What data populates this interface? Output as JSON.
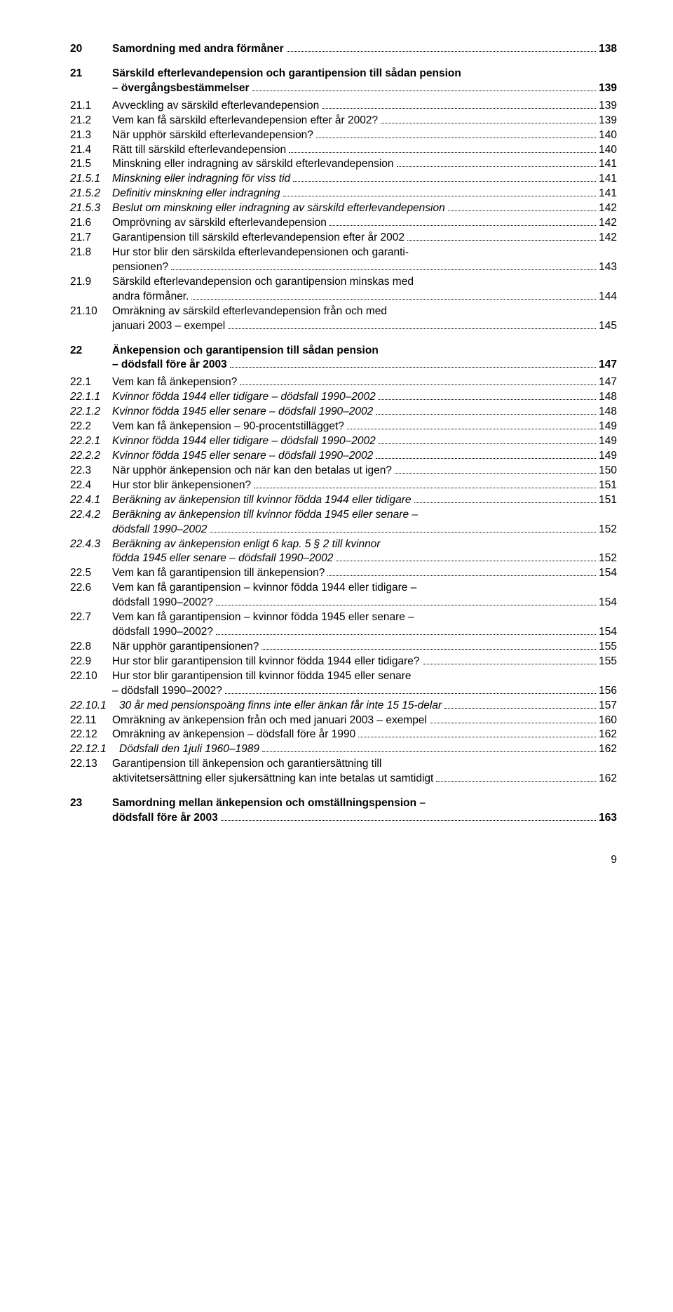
{
  "page_number": "9",
  "font": {
    "body_size_pt": 11,
    "family": "Arial"
  },
  "colors": {
    "text": "#000000",
    "background": "#ffffff"
  },
  "entries": [
    {
      "num": "20",
      "label": "Samordning med andra förmåner",
      "page": "138",
      "bold": true,
      "gap_after": "med"
    },
    {
      "num": "21",
      "label": "Särskild efterlevandepension och garantipension till sådan pension",
      "page": "",
      "bold": true,
      "no_dots": true
    },
    {
      "num": "",
      "label": "– övergångsbestämmelser",
      "page": "139",
      "bold": true,
      "gap_after": "small"
    },
    {
      "num": "21.1",
      "label": "Avveckling av särskild efterlevandepension",
      "page": "139"
    },
    {
      "num": "21.2",
      "label": "Vem kan få särskild efterlevandepension efter år 2002?",
      "page": "139"
    },
    {
      "num": "21.3",
      "label": "När upphör särskild efterlevandepension?",
      "page": "140"
    },
    {
      "num": "21.4",
      "label": "Rätt till särskild efterlevandepension",
      "page": "140"
    },
    {
      "num": "21.5",
      "label": "Minskning eller indragning av särskild efterlevandepension",
      "page": "141"
    },
    {
      "num": "21.5.1",
      "label": "Minskning eller indragning för viss tid",
      "page": "141",
      "italic": true
    },
    {
      "num": "21.5.2",
      "label": "Definitiv minskning eller indragning",
      "page": "141",
      "italic": true
    },
    {
      "num": "21.5.3",
      "label": "Beslut om minskning eller indragning av särskild efterlevandepension",
      "page": "142",
      "italic": true
    },
    {
      "num": "21.6",
      "label": "Omprövning av särskild efterlevandepension",
      "page": "142"
    },
    {
      "num": "21.7",
      "label": "Garantipension till särskild efterlevandepension efter år 2002",
      "page": "142"
    },
    {
      "num": "21.8",
      "label": "Hur stor blir den särskilda efterlevandepensionen och garanti-",
      "page": "",
      "no_dots": true
    },
    {
      "num": "",
      "label": "pensionen?",
      "page": "143"
    },
    {
      "num": "21.9",
      "label": "Särskild efterlevandepension och garantipension minskas med",
      "page": "",
      "no_dots": true
    },
    {
      "num": "",
      "label": "andra förmåner.",
      "page": "144"
    },
    {
      "num": "21.10",
      "label": "Omräkning av särskild efterlevandepension från och med",
      "page": "",
      "no_dots": true
    },
    {
      "num": "",
      "label": "januari 2003 – exempel",
      "page": "145",
      "gap_after": "med"
    },
    {
      "num": "22",
      "label": "Änkepension och garantipension till sådan pension",
      "page": "",
      "bold": true,
      "no_dots": true
    },
    {
      "num": "",
      "label": "– dödsfall före år 2003",
      "page": "147",
      "bold": true,
      "gap_after": "small"
    },
    {
      "num": "22.1",
      "label": "Vem kan få änkepension?",
      "page": "147"
    },
    {
      "num": "22.1.1",
      "label": "Kvinnor födda 1944 eller tidigare – dödsfall 1990–2002",
      "page": "148",
      "italic": true
    },
    {
      "num": "22.1.2",
      "label": "Kvinnor födda 1945 eller senare – dödsfall 1990–2002",
      "page": "148",
      "italic": true
    },
    {
      "num": "22.2",
      "label": "Vem kan få änkepension – 90-procentstillägget?",
      "page": "149"
    },
    {
      "num": "22.2.1",
      "label": "Kvinnor födda 1944 eller tidigare – dödsfall 1990–2002",
      "page": "149",
      "italic": true
    },
    {
      "num": "22.2.2",
      "label": "Kvinnor födda 1945 eller senare – dödsfall 1990–2002",
      "page": "149",
      "italic": true
    },
    {
      "num": "22.3",
      "label": "När upphör änkepension och när kan den betalas ut igen?",
      "page": "150"
    },
    {
      "num": "22.4",
      "label": "Hur stor blir änkepensionen?",
      "page": "151"
    },
    {
      "num": "22.4.1",
      "label": "Beräkning av änkepension till kvinnor födda 1944 eller tidigare",
      "page": "151",
      "italic": true
    },
    {
      "num": "22.4.2",
      "label": "Beräkning av änkepension till kvinnor födda 1945 eller senare –",
      "page": "",
      "italic": true,
      "no_dots": true
    },
    {
      "num": "",
      "label": " dödsfall 1990–2002",
      "page": "152",
      "italic": true
    },
    {
      "num": "22.4.3",
      "label": "Beräkning av änkepension enligt 6 kap. 5 § 2 till kvinnor",
      "page": "",
      "italic": true,
      "no_dots": true
    },
    {
      "num": "",
      "label": "födda 1945 eller senare – dödsfall 1990–2002",
      "page": "152",
      "italic": true
    },
    {
      "num": "22.5",
      "label": "Vem kan få garantipension till änkepension?",
      "page": "154"
    },
    {
      "num": "22.6",
      "label": "Vem kan få garantipension – kvinnor födda 1944 eller tidigare –",
      "page": "",
      "no_dots": true
    },
    {
      "num": "",
      "label": " dödsfall 1990–2002?",
      "page": "154"
    },
    {
      "num": "22.7",
      "label": "Vem kan få garantipension – kvinnor födda 1945 eller senare –",
      "page": "",
      "no_dots": true
    },
    {
      "num": "",
      "label": " dödsfall 1990–2002?",
      "page": "154"
    },
    {
      "num": "22.8",
      "label": "När upphör garantipensionen?",
      "page": "155"
    },
    {
      "num": "22.9",
      "label": "Hur stor blir garantipension till kvinnor födda 1944 eller tidigare?",
      "page": "155"
    },
    {
      "num": "22.10",
      "label": "Hur stor blir garantipension till kvinnor födda 1945 eller senare",
      "page": "",
      "no_dots": true
    },
    {
      "num": "",
      "label": "– dödsfall 1990–2002?",
      "page": "156"
    },
    {
      "num": "22.10.1",
      "label": "30 år med pensionspoäng finns inte eller änkan får inte 15 15-delar",
      "page": "157",
      "italic": true,
      "num_wide": true
    },
    {
      "num": "22.11",
      "label": "Omräkning av änkepension från och med januari 2003 – exempel",
      "page": "160"
    },
    {
      "num": "22.12",
      "label": "Omräkning av änkepension – dödsfall före år 1990",
      "page": "162"
    },
    {
      "num": "22.12.1",
      "label": "Dödsfall den 1juli 1960–1989",
      "page": "162",
      "italic": true,
      "num_wide": true
    },
    {
      "num": "22.13",
      "label": "Garantipension till änkepension och garantiersättning till",
      "page": "",
      "no_dots": true
    },
    {
      "num": "",
      "label": "aktivitetsersättning eller sjukersättning kan inte betalas ut samtidigt",
      "page": "162",
      "gap_after": "med"
    },
    {
      "num": "23",
      "label": "Samordning mellan änkepension och  omställningspension –",
      "page": "",
      "bold": true,
      "no_dots": true
    },
    {
      "num": "",
      "label": " dödsfall före år 2003",
      "page": "163",
      "bold": true
    }
  ]
}
